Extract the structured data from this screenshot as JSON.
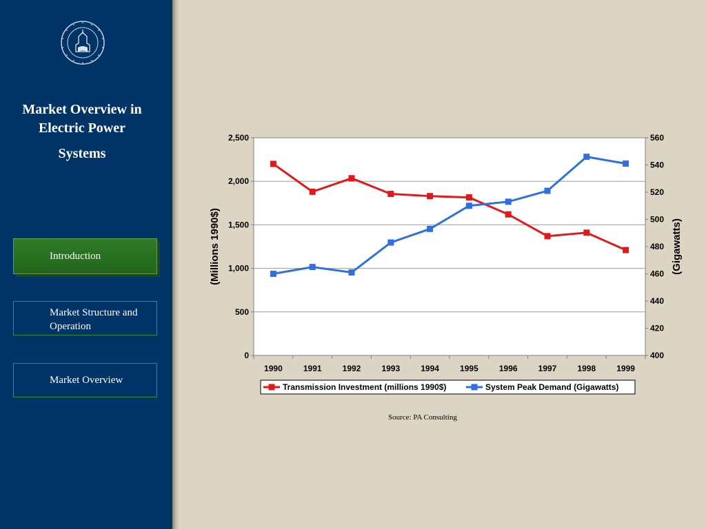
{
  "sidebar": {
    "title_lines": [
      "Market Overview in",
      "Electric Power",
      "Systems"
    ],
    "nav": [
      {
        "label": "Introduction",
        "active": true
      },
      {
        "label": "Market Structure and Operation",
        "active": false
      },
      {
        "label": "Market Overview",
        "active": false
      }
    ]
  },
  "source": "Source: PA Consulting",
  "colors": {
    "sidebar": "#003366",
    "nav_active": "#2e7a26",
    "series1": "#e01a1a",
    "series2": "#2f6fe0"
  },
  "chart_data": {
    "type": "line",
    "x": [
      "1990",
      "1991",
      "1992",
      "1993",
      "1994",
      "1995",
      "1996",
      "1997",
      "1998",
      "1999"
    ],
    "series": [
      {
        "name": "Transmission Investment (millions 1990$)",
        "axis": "left",
        "color": "#e01a1a",
        "values": [
          2200,
          1880,
          2035,
          1855,
          1830,
          1815,
          1620,
          1370,
          1410,
          1210
        ]
      },
      {
        "name": "System Peak Demand (Gigawatts)",
        "axis": "right",
        "color": "#2f6fe0",
        "values": [
          460,
          465,
          461,
          483,
          493,
          510,
          513,
          521,
          546,
          541
        ]
      }
    ],
    "ylabel": "(Millions 1990$)",
    "y2label": "(Gigawatts)",
    "ylim": [
      0,
      2500
    ],
    "y2lim": [
      400,
      560
    ],
    "yticks": [
      "0",
      "500",
      "1,000",
      "1,500",
      "2,000",
      "2,500"
    ],
    "y2ticks": [
      "400",
      "420",
      "440",
      "460",
      "480",
      "500",
      "520",
      "540",
      "560"
    ],
    "grid": true,
    "legend": "bottom"
  }
}
